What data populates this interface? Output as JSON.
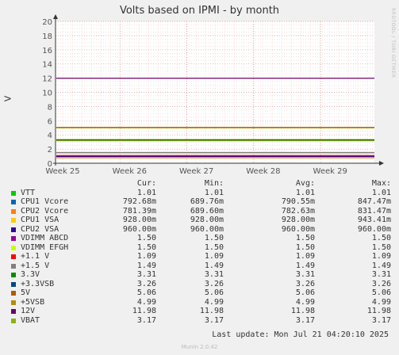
{
  "title": "Volts based on IPMI - by month",
  "side_credit": "RRDTOOL / TOBI OETIKER",
  "footer": "Munin 2.0.42",
  "last_update": "Last update: Mon Jul 21 04:20:10 2025",
  "legend_headers": {
    "cur": "Cur:",
    "min": "Min:",
    "avg": "Avg:",
    "max": "Max:"
  },
  "legend": [
    {
      "name": "VTT",
      "color": "#00cc00",
      "cur": "1.01",
      "min": "1.01",
      "avg": "1.01",
      "max": "1.01"
    },
    {
      "name": "CPU1 Vcore",
      "color": "#0066b3",
      "cur": "792.68m",
      "min": "689.76m",
      "avg": "790.55m",
      "max": "847.47m"
    },
    {
      "name": "CPU2 Vcore",
      "color": "#ff8000",
      "cur": "781.39m",
      "min": "689.60m",
      "avg": "782.63m",
      "max": "831.47m"
    },
    {
      "name": "CPU1 VSA",
      "color": "#ffcc00",
      "cur": "928.00m",
      "min": "928.00m",
      "avg": "928.00m",
      "max": "943.41m"
    },
    {
      "name": "CPU2 VSA",
      "color": "#330099",
      "cur": "960.00m",
      "min": "960.00m",
      "avg": "960.00m",
      "max": "960.00m"
    },
    {
      "name": "VDIMM ABCD",
      "color": "#990099",
      "cur": "1.50",
      "min": "1.50",
      "avg": "1.50",
      "max": "1.50"
    },
    {
      "name": "VDIMM EFGH",
      "color": "#ccff00",
      "cur": "1.50",
      "min": "1.50",
      "avg": "1.50",
      "max": "1.50"
    },
    {
      "name": "+1.1 V",
      "color": "#ff0000",
      "cur": "1.09",
      "min": "1.09",
      "avg": "1.09",
      "max": "1.09"
    },
    {
      "name": "+1.5 V",
      "color": "#808080",
      "cur": "1.49",
      "min": "1.49",
      "avg": "1.49",
      "max": "1.49"
    },
    {
      "name": "3.3V",
      "color": "#008f00",
      "cur": "3.31",
      "min": "3.31",
      "avg": "3.31",
      "max": "3.31"
    },
    {
      "name": "+3.3VSB",
      "color": "#00487d",
      "cur": "3.26",
      "min": "3.26",
      "avg": "3.26",
      "max": "3.26"
    },
    {
      "name": "5V",
      "color": "#b35a00",
      "cur": "5.06",
      "min": "5.06",
      "avg": "5.06",
      "max": "5.06"
    },
    {
      "name": "+5VSB",
      "color": "#b38f00",
      "cur": "4.99",
      "min": "4.99",
      "avg": "4.99",
      "max": "4.99"
    },
    {
      "name": "12V",
      "color": "#6b006b",
      "cur": "11.98",
      "min": "11.98",
      "avg": "11.98",
      "max": "11.98"
    },
    {
      "name": "VBAT",
      "color": "#8fb300",
      "cur": "3.17",
      "min": "3.17",
      "avg": "3.17",
      "max": "3.17"
    }
  ],
  "chart_data": {
    "type": "line",
    "title": "Volts based on IPMI - by month",
    "ylabel": "V",
    "xlabel": "",
    "ylim": [
      0,
      20
    ],
    "yticks": [
      0,
      2,
      4,
      6,
      8,
      10,
      12,
      14,
      16,
      18,
      20
    ],
    "x_tick_labels": [
      "Week 25",
      "Week 26",
      "Week 27",
      "Week 28",
      "Week 29"
    ],
    "grid": true,
    "series": [
      {
        "name": "VTT",
        "color": "#00cc00",
        "value": 1.01
      },
      {
        "name": "CPU1 Vcore",
        "color": "#0066b3",
        "value": 0.79055
      },
      {
        "name": "CPU2 Vcore",
        "color": "#ff8000",
        "value": 0.78263
      },
      {
        "name": "CPU1 VSA",
        "color": "#ffcc00",
        "value": 0.928
      },
      {
        "name": "CPU2 VSA",
        "color": "#330099",
        "value": 0.96
      },
      {
        "name": "VDIMM ABCD",
        "color": "#990099",
        "value": 1.5
      },
      {
        "name": "VDIMM EFGH",
        "color": "#ccff00",
        "value": 1.5
      },
      {
        "name": "+1.1 V",
        "color": "#ff0000",
        "value": 1.09
      },
      {
        "name": "+1.5 V",
        "color": "#808080",
        "value": 1.49
      },
      {
        "name": "3.3V",
        "color": "#008f00",
        "value": 3.31
      },
      {
        "name": "+3.3VSB",
        "color": "#00487d",
        "value": 3.26
      },
      {
        "name": "5V",
        "color": "#b35a00",
        "value": 5.06
      },
      {
        "name": "+5VSB",
        "color": "#b38f00",
        "value": 4.99
      },
      {
        "name": "12V",
        "color": "#6b006b",
        "value": 11.98
      },
      {
        "name": "VBAT",
        "color": "#8fb300",
        "value": 3.17
      }
    ]
  }
}
